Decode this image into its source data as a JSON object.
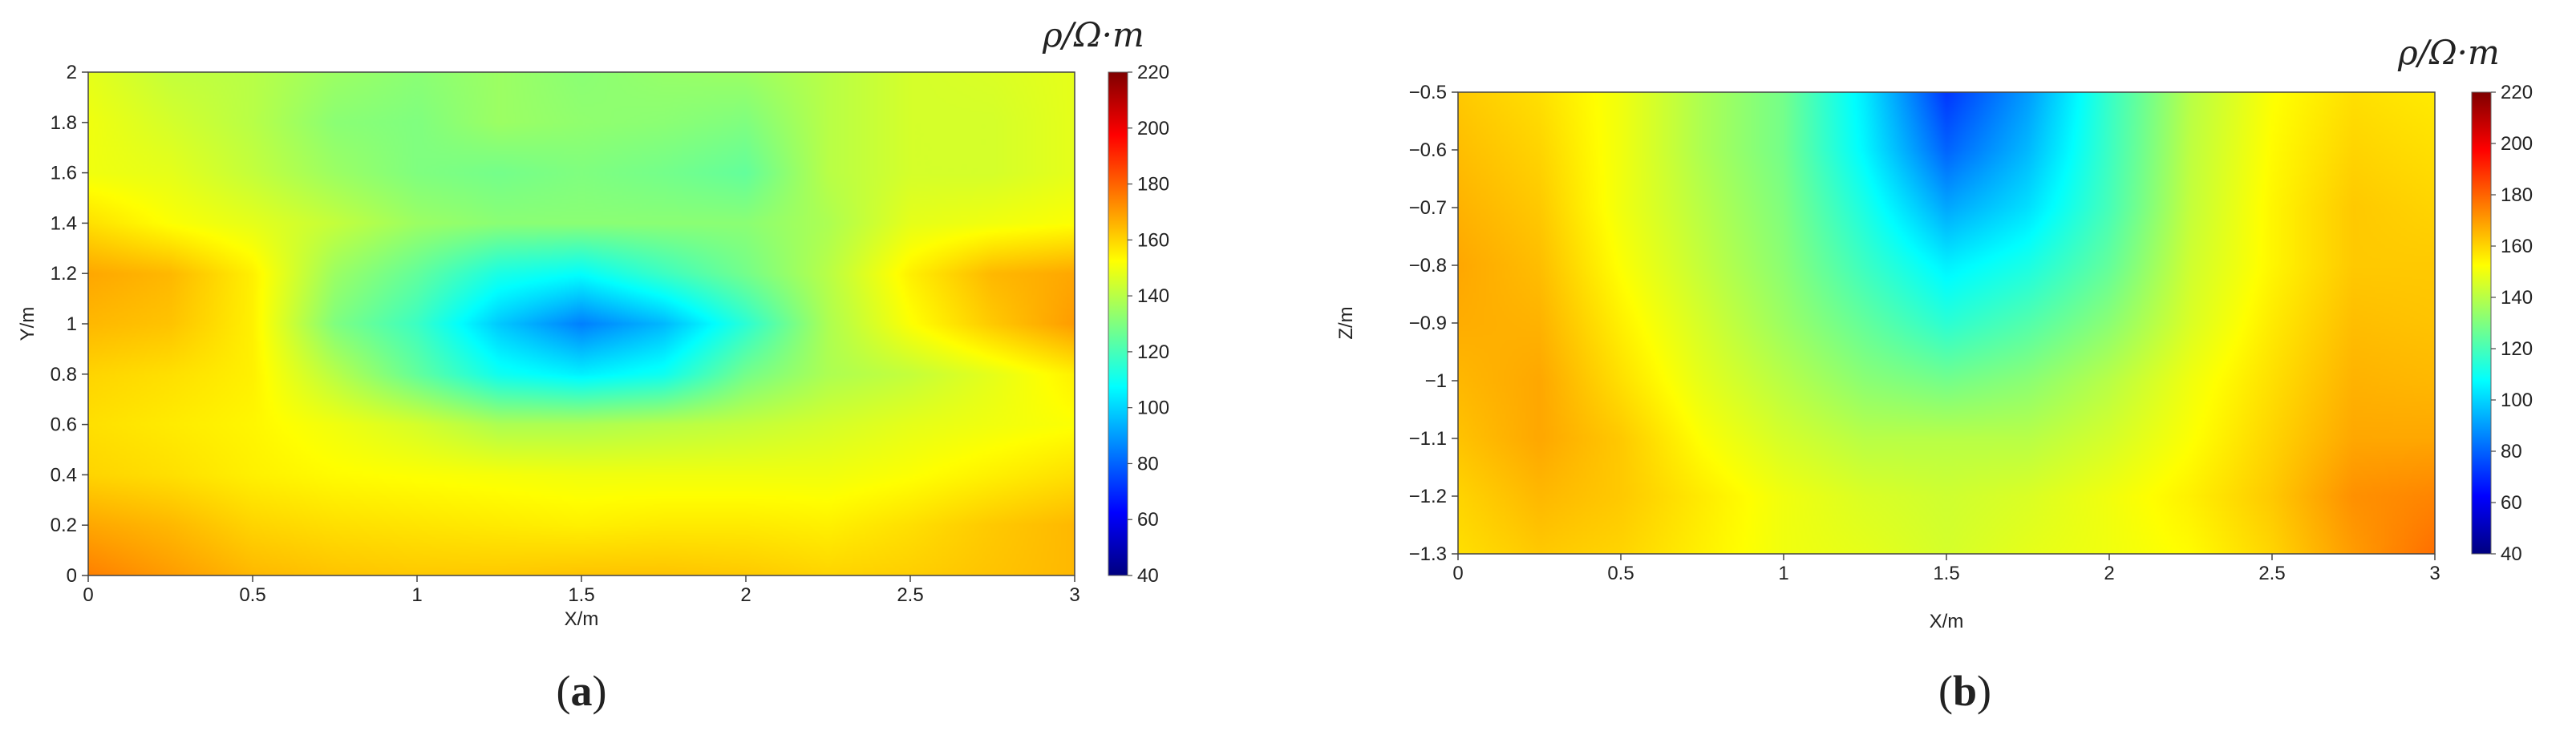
{
  "chart_data": [
    {
      "type": "heatmap",
      "panel_label": "a",
      "xlabel": "X/m",
      "ylabel": "Y/m",
      "xlim": [
        0,
        3
      ],
      "ylim": [
        0,
        2
      ],
      "xticks": [
        "0",
        "0.5",
        "1",
        "1.5",
        "2",
        "2.5",
        "3"
      ],
      "yticks": [
        "0",
        "0.2",
        "0.4",
        "0.6",
        "0.8",
        "1",
        "1.2",
        "1.4",
        "1.6",
        "1.8",
        "2"
      ],
      "x": [
        0,
        0.25,
        0.5,
        0.75,
        1.0,
        1.25,
        1.5,
        1.75,
        2.0,
        2.25,
        2.5,
        2.75,
        3.0
      ],
      "y": [
        0,
        0.2,
        0.4,
        0.6,
        0.8,
        1.0,
        1.2,
        1.4,
        1.6,
        1.8,
        2.0
      ],
      "z": [
        [
          175,
          170,
          165,
          163,
          162,
          162,
          163,
          163,
          162,
          160,
          161,
          163,
          165
        ],
        [
          168,
          165,
          160,
          158,
          157,
          156,
          155,
          156,
          156,
          155,
          158,
          162,
          165
        ],
        [
          160,
          158,
          155,
          153,
          152,
          151,
          150,
          150,
          150,
          150,
          152,
          155,
          158
        ],
        [
          158,
          156,
          154,
          150,
          145,
          138,
          138,
          140,
          142,
          145,
          148,
          150,
          152
        ],
        [
          160,
          158,
          155,
          140,
          125,
          110,
          105,
          110,
          128,
          138,
          142,
          148,
          155
        ],
        [
          165,
          163,
          155,
          130,
          118,
          98,
          85,
          95,
          115,
          138,
          152,
          162,
          170
        ],
        [
          168,
          165,
          155,
          135,
          125,
          112,
          108,
          118,
          128,
          140,
          155,
          165,
          168
        ],
        [
          158,
          152,
          148,
          142,
          135,
          132,
          132,
          132,
          132,
          138,
          148,
          150,
          152
        ],
        [
          150,
          148,
          142,
          135,
          130,
          128,
          130,
          128,
          125,
          140,
          145,
          145,
          148
        ],
        [
          150,
          145,
          140,
          132,
          130,
          135,
          133,
          132,
          130,
          140,
          145,
          145,
          148
        ],
        [
          148,
          142,
          140,
          135,
          132,
          135,
          132,
          134,
          135,
          140,
          145,
          146,
          148
        ]
      ],
      "colorbar": {
        "label": "ρ/Ω·m",
        "min": 40,
        "max": 220,
        "ticks": [
          "40",
          "60",
          "80",
          "100",
          "120",
          "140",
          "160",
          "180",
          "200",
          "220"
        ]
      },
      "grid": false
    },
    {
      "type": "heatmap",
      "panel_label": "b",
      "xlabel": "X/m",
      "ylabel": "Z/m",
      "xlim": [
        0,
        3
      ],
      "ylim": [
        -1.3,
        -0.5
      ],
      "xticks": [
        "0",
        "0.5",
        "1",
        "1.5",
        "2",
        "2.5",
        "3"
      ],
      "yticks": [
        "−1.3",
        "−1.2",
        "−1.1",
        "−1",
        "−0.9",
        "−0.8",
        "−0.7",
        "−0.6",
        "−0.5"
      ],
      "x": [
        0,
        0.25,
        0.5,
        0.75,
        1.0,
        1.25,
        1.5,
        1.75,
        2.0,
        2.25,
        2.5,
        2.75,
        3.0
      ],
      "y": [
        -1.3,
        -1.2,
        -1.1,
        -1.0,
        -0.9,
        -0.8,
        -0.7,
        -0.6,
        -0.5
      ],
      "z": [
        [
          158,
          162,
          160,
          155,
          150,
          148,
          145,
          148,
          150,
          153,
          160,
          170,
          178
        ],
        [
          160,
          165,
          162,
          156,
          150,
          146,
          144,
          146,
          150,
          155,
          162,
          172,
          174
        ],
        [
          163,
          168,
          162,
          152,
          145,
          140,
          140,
          140,
          145,
          152,
          160,
          168,
          168
        ],
        [
          165,
          168,
          158,
          148,
          140,
          132,
          128,
          132,
          140,
          150,
          158,
          166,
          165
        ],
        [
          167,
          166,
          155,
          145,
          135,
          125,
          115,
          122,
          132,
          146,
          156,
          164,
          163
        ],
        [
          168,
          164,
          152,
          142,
          132,
          118,
          105,
          112,
          125,
          144,
          154,
          162,
          162
        ],
        [
          166,
          162,
          150,
          140,
          130,
          112,
          92,
          102,
          120,
          142,
          154,
          162,
          160
        ],
        [
          164,
          160,
          150,
          138,
          128,
          106,
          80,
          95,
          118,
          141,
          153,
          160,
          158
        ],
        [
          162,
          158,
          150,
          138,
          128,
          104,
          72,
          90,
          117,
          140,
          152,
          158,
          156
        ]
      ],
      "colorbar": {
        "label": "ρ/Ω·m",
        "min": 40,
        "max": 220,
        "ticks": [
          "40",
          "60",
          "80",
          "100",
          "120",
          "140",
          "160",
          "180",
          "200",
          "220"
        ]
      },
      "grid": false
    }
  ]
}
